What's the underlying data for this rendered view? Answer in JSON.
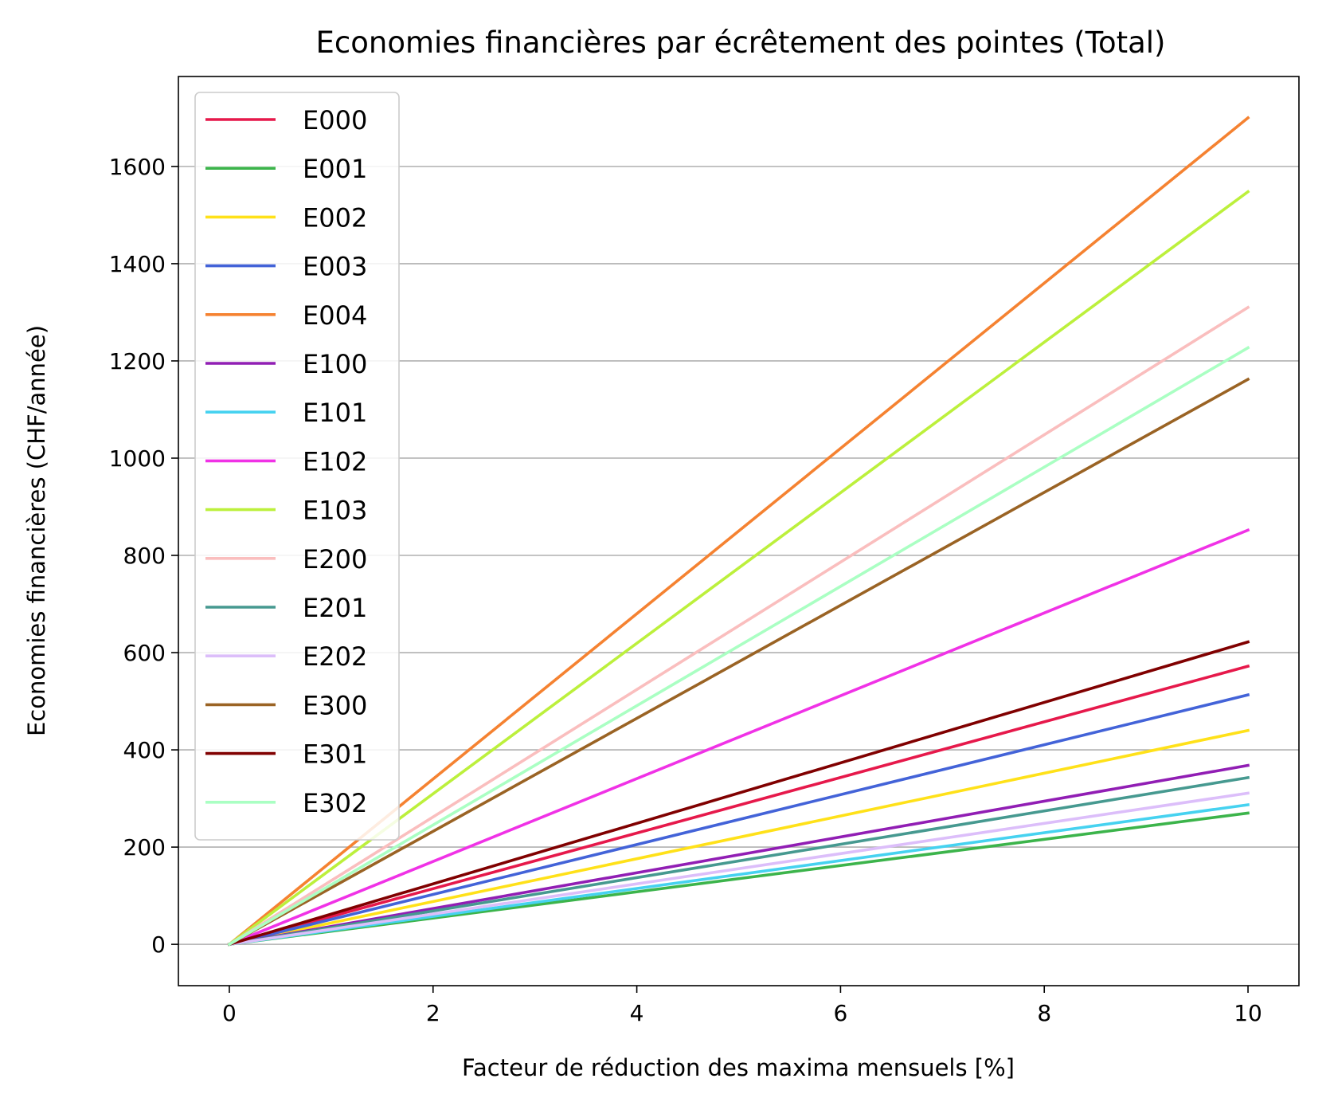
{
  "chart_data": {
    "type": "line",
    "title": "Economies financières par écrêtement des pointes (Total)",
    "xlabel": "Facteur de réduction des maxima mensuels [%]",
    "ylabel": "Economies financières (CHF/année)",
    "xlim": [
      -0.5,
      10.5
    ],
    "ylim": [
      -85,
      1785
    ],
    "xticks": [
      0,
      2,
      4,
      6,
      8,
      10
    ],
    "yticks": [
      0,
      200,
      400,
      600,
      800,
      1000,
      1200,
      1400,
      1600
    ],
    "grid": "horizontal",
    "legend_position": "upper-left",
    "x": [
      0,
      10
    ],
    "series": [
      {
        "name": "E000",
        "color": "#e6194b",
        "values": [
          0,
          572
        ]
      },
      {
        "name": "E001",
        "color": "#3cb44b",
        "values": [
          0,
          270
        ]
      },
      {
        "name": "E002",
        "color": "#ffe119",
        "values": [
          0,
          440
        ]
      },
      {
        "name": "E003",
        "color": "#4363d8",
        "values": [
          0,
          513
        ]
      },
      {
        "name": "E004",
        "color": "#f58231",
        "values": [
          0,
          1700
        ]
      },
      {
        "name": "E100",
        "color": "#911eb4",
        "values": [
          0,
          368
        ]
      },
      {
        "name": "E101",
        "color": "#46d2f0",
        "values": [
          0,
          287
        ]
      },
      {
        "name": "E102",
        "color": "#f032e6",
        "values": [
          0,
          852
        ]
      },
      {
        "name": "E103",
        "color": "#bcf03c",
        "values": [
          0,
          1548
        ]
      },
      {
        "name": "E200",
        "color": "#fabebe",
        "values": [
          0,
          1310
        ]
      },
      {
        "name": "E201",
        "color": "#469990",
        "values": [
          0,
          343
        ]
      },
      {
        "name": "E202",
        "color": "#dcbefa",
        "values": [
          0,
          311
        ]
      },
      {
        "name": "E300",
        "color": "#9a6324",
        "values": [
          0,
          1162
        ]
      },
      {
        "name": "E301",
        "color": "#800000",
        "values": [
          0,
          622
        ]
      },
      {
        "name": "E302",
        "color": "#aaffc3",
        "values": [
          0,
          1227
        ]
      }
    ]
  }
}
